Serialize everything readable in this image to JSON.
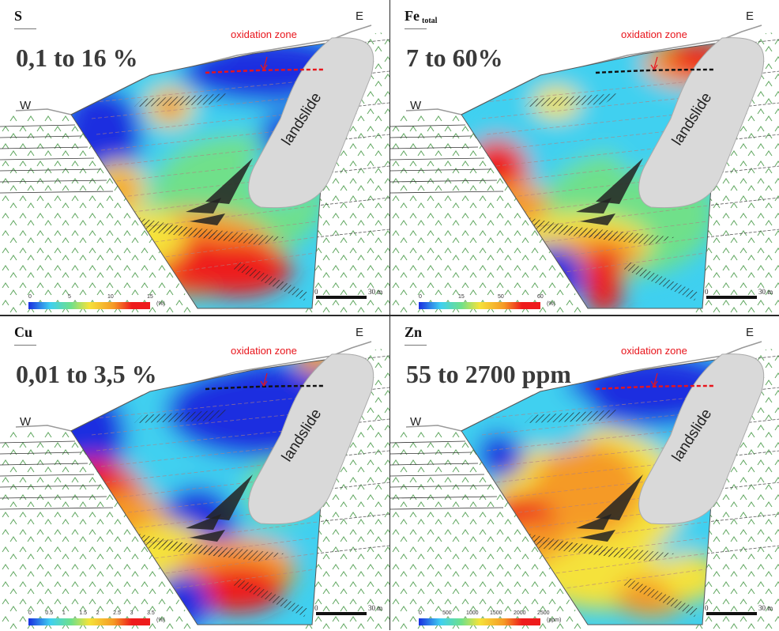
{
  "panels": [
    {
      "element": "S",
      "element_sub": "",
      "range": "0,1 to 16 %",
      "oxidation_label": "oxidation zone",
      "west": "W",
      "east": "E",
      "landslide": "landslide",
      "colorbar": {
        "ticks": [
          "0",
          "5",
          "10",
          "15"
        ],
        "unit": "(%)"
      },
      "scale": {
        "zero": "0",
        "label": "30 m"
      },
      "dash_color": "#e8141b"
    },
    {
      "element": "Fe",
      "element_sub": "total",
      "range": "7 to 60%",
      "oxidation_label": "oxidation zone",
      "west": "W",
      "east": "E",
      "landslide": "landslide",
      "colorbar": {
        "ticks": [
          "0",
          "15",
          "50",
          "60"
        ],
        "unit": "(%)"
      },
      "scale": {
        "zero": "0",
        "label": "30 m"
      },
      "dash_color": "#111111"
    },
    {
      "element": "Cu",
      "element_sub": "",
      "range": "0,01 to 3,5 %",
      "oxidation_label": "oxidation zone",
      "west": "W",
      "east": "E",
      "landslide": "landslide",
      "colorbar": {
        "ticks": [
          "0",
          "0.5",
          "1",
          "1.5",
          "2",
          "2.5",
          "3",
          "3.5"
        ],
        "unit": "(%)"
      },
      "scale": {
        "zero": "0",
        "label": "30 m"
      },
      "dash_color": "#111111"
    },
    {
      "element": "Zn",
      "element_sub": "",
      "range": "55 to 2700 ppm",
      "oxidation_label": "oxidation zone",
      "west": "W",
      "east": "E",
      "landslide": "landslide",
      "colorbar": {
        "ticks": [
          "0",
          "500",
          "1000",
          "1500",
          "2000",
          "2500"
        ],
        "unit": "(ppm)"
      },
      "scale": {
        "zero": "0",
        "label": "30 m"
      },
      "dash_color": "#e8141b"
    }
  ],
  "colors": {
    "blue": "#1a2fe0",
    "cyan": "#3fd0f0",
    "green": "#6fe08a",
    "yellow": "#f5e23a",
    "orange": "#f59a25",
    "red": "#ee1c1c",
    "landslide": "#d9d9d9",
    "background_hatch": "#66aa66"
  }
}
